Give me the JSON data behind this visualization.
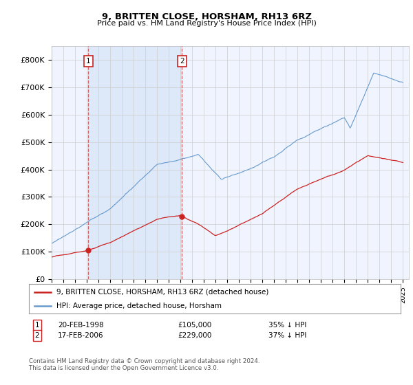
{
  "title1": "9, BRITTEN CLOSE, HORSHAM, RH13 6RZ",
  "title2": "Price paid vs. HM Land Registry's House Price Index (HPI)",
  "ylabel_ticks": [
    "£0",
    "£100K",
    "£200K",
    "£300K",
    "£400K",
    "£500K",
    "£600K",
    "£700K",
    "£800K"
  ],
  "ytick_vals": [
    0,
    100000,
    200000,
    300000,
    400000,
    500000,
    600000,
    700000,
    800000
  ],
  "ylim": [
    0,
    850000
  ],
  "xlim_start": 1995.0,
  "xlim_end": 2025.5,
  "xtick_years": [
    1995,
    1996,
    1997,
    1998,
    1999,
    2000,
    2001,
    2002,
    2003,
    2004,
    2005,
    2006,
    2007,
    2008,
    2009,
    2010,
    2011,
    2012,
    2013,
    2014,
    2015,
    2016,
    2017,
    2018,
    2019,
    2020,
    2021,
    2022,
    2023,
    2024,
    2025
  ],
  "plot_bg": "#f0f4ff",
  "shade_color": "#dde8f8",
  "hpi_color": "#6699cc",
  "price_color": "#cc2222",
  "vline_color": "#cc4444",
  "grid_color": "#cccccc",
  "marker1_date": 1998.13,
  "marker1_price": 105000,
  "marker2_date": 2006.13,
  "marker2_price": 229000,
  "legend_label1": "9, BRITTEN CLOSE, HORSHAM, RH13 6RZ (detached house)",
  "legend_label2": "HPI: Average price, detached house, Horsham",
  "note1_date": "20-FEB-1998",
  "note1_price": "£105,000",
  "note1_hpi": "35% ↓ HPI",
  "note2_date": "17-FEB-2006",
  "note2_price": "£229,000",
  "note2_hpi": "37% ↓ HPI",
  "footer": "Contains HM Land Registry data © Crown copyright and database right 2024.\nThis data is licensed under the Open Government Licence v3.0."
}
